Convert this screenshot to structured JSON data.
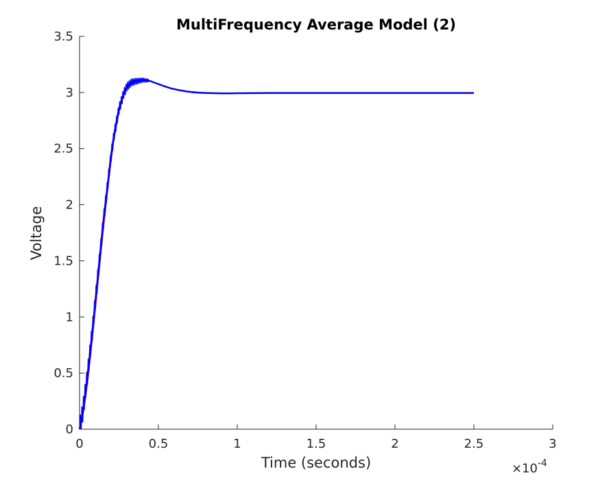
{
  "chart_data": {
    "type": "line",
    "title": "MultiFrequency Average Model (2)",
    "xlabel": "Time (seconds)",
    "ylabel": "Voltage",
    "x_exponent_label": "×10",
    "x_exponent_power": "-4",
    "xlim": [
      0,
      3
    ],
    "ylim": [
      0,
      3.5
    ],
    "x_ticks": [
      "0",
      "0.5",
      "1",
      "1.5",
      "2",
      "2.5",
      "3"
    ],
    "y_ticks": [
      "0",
      "0.5",
      "1",
      "1.5",
      "2",
      "2.5",
      "3",
      "3.5"
    ],
    "x_tick_values": [
      0,
      0.5,
      1,
      1.5,
      2,
      2.5,
      3
    ],
    "y_tick_values": [
      0,
      0.5,
      1,
      1.5,
      2,
      2.5,
      3,
      3.5
    ],
    "grid": false,
    "x_units_note": "x values in units of 1e-4 seconds, as printed on the axis",
    "series": [
      {
        "color": "#b0105a",
        "x": [
          0,
          0.02,
          0.05,
          0.08,
          0.1,
          0.12,
          0.15,
          0.18,
          0.2,
          0.22,
          0.25,
          0.28,
          0.3,
          0.33,
          0.36,
          0.4,
          0.44,
          0.47,
          0.5,
          0.55,
          0.6,
          0.7,
          0.8,
          0.9,
          1.0,
          1.2,
          1.5,
          2.0,
          2.5
        ],
        "y": [
          0,
          0.12,
          0.42,
          0.8,
          1.08,
          1.36,
          1.78,
          2.16,
          2.4,
          2.6,
          2.83,
          2.98,
          3.04,
          3.08,
          3.1,
          3.11,
          3.105,
          3.09,
          3.075,
          3.05,
          3.03,
          3.005,
          2.995,
          2.992,
          2.993,
          2.995,
          2.995,
          2.995,
          2.995
        ]
      },
      {
        "color": "#0000ee",
        "x": [
          0,
          0.02,
          0.05,
          0.08,
          0.1,
          0.12,
          0.15,
          0.18,
          0.2,
          0.22,
          0.25,
          0.28,
          0.3,
          0.33,
          0.36,
          0.4,
          0.44,
          0.47,
          0.5,
          0.55,
          0.6,
          0.7,
          0.8,
          0.9,
          1.0,
          1.2,
          1.5,
          2.0,
          2.5
        ],
        "y": [
          0,
          0.15,
          0.48,
          0.86,
          1.14,
          1.42,
          1.84,
          2.2,
          2.44,
          2.63,
          2.85,
          2.99,
          3.05,
          3.09,
          3.1,
          3.11,
          3.105,
          3.09,
          3.075,
          3.05,
          3.03,
          3.005,
          2.995,
          2.992,
          2.993,
          2.995,
          2.995,
          2.995,
          2.995
        ]
      }
    ],
    "ripple": {
      "color": "#0000ff",
      "x_end": 0.44,
      "amplitude": 0.09,
      "period": 0.01
    }
  }
}
